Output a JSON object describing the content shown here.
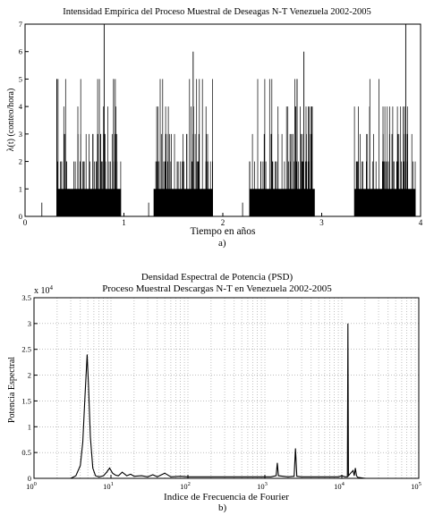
{
  "figure_labels": {
    "a": "a)",
    "b": "b)"
  },
  "chart_data": [
    {
      "type": "bar",
      "title": "Intensidad Empírica del Proceso Muestral de Deseagas N-T Venezuela 2002-2005",
      "xlabel": "Tiempo en años",
      "ylabel": "λ(t) (conteo/hora)",
      "xlim": [
        0,
        4
      ],
      "ylim": [
        0,
        7
      ],
      "xticks": [
        "0",
        "1",
        "2",
        "3",
        "4"
      ],
      "yticks": [
        "0",
        "1",
        "2",
        "3",
        "4",
        "5",
        "6",
        "7"
      ],
      "grid": false,
      "bursts": [
        {
          "start": 0.32,
          "end": 0.97,
          "peak_x": 0.8,
          "peak_y": 7
        },
        {
          "start": 1.3,
          "end": 1.9,
          "peak_x": 1.7,
          "peak_y": 6
        },
        {
          "start": 2.27,
          "end": 2.93,
          "peak_x": 2.82,
          "peak_y": 6
        },
        {
          "start": 3.33,
          "end": 3.95,
          "peak_x": 3.85,
          "peak_y": 7
        }
      ],
      "isolated_events": [
        {
          "x": 0.17,
          "y": 0.5
        },
        {
          "x": 1.25,
          "y": 0.5
        },
        {
          "x": 2.2,
          "y": 0.5
        }
      ]
    },
    {
      "type": "line",
      "title": "Densidad Espectral de Potencia (PSD)",
      "subtitle": "Proceso Muestral Descargas N-T en Venezuela 2002-2005",
      "xlabel": "Indice de Frecuencia de Fourier",
      "ylabel": "Potencia Espectral",
      "y_multiplier": "x 10",
      "y_multiplier_exp": "4",
      "xscale": "log",
      "xlim": [
        1,
        100000
      ],
      "ylim": [
        0,
        3.5
      ],
      "xtick_bases": [
        "10",
        "10",
        "10",
        "10",
        "10",
        "10"
      ],
      "xtick_exps": [
        "0",
        "1",
        "2",
        "3",
        "4",
        "5"
      ],
      "yticks": [
        "0",
        "0.5",
        "1",
        "1.5",
        "2",
        "2.5",
        "3",
        "3.5"
      ],
      "grid": true,
      "series": [
        {
          "x": [
            3,
            3.5,
            4,
            4.3,
            4.6,
            4.9,
            5.1,
            5.4,
            5.8,
            6.3,
            7,
            8,
            8.8,
            9.6,
            10.5,
            11.5,
            12.5,
            14,
            16,
            18,
            20,
            25,
            30,
            35,
            40,
            50,
            60,
            80,
            100,
            150,
            200,
            300,
            500,
            800,
            1000,
            1200,
            1400,
            1450,
            1500,
            2000,
            2400,
            2500,
            2600,
            3000,
            4000,
            5000,
            6000,
            7000,
            8000,
            9000,
            10000,
            11000,
            11800,
            12000,
            12200,
            13000,
            14000,
            14500,
            15000,
            15500,
            16000,
            20000
          ],
          "y": [
            0.0,
            0.05,
            0.25,
            0.7,
            1.6,
            2.4,
            1.8,
            0.8,
            0.2,
            0.05,
            0.03,
            0.05,
            0.12,
            0.2,
            0.1,
            0.06,
            0.05,
            0.12,
            0.05,
            0.08,
            0.04,
            0.05,
            0.03,
            0.07,
            0.03,
            0.1,
            0.03,
            0.04,
            0.03,
            0.03,
            0.03,
            0.03,
            0.03,
            0.03,
            0.03,
            0.03,
            0.05,
            0.3,
            0.05,
            0.03,
            0.04,
            0.58,
            0.04,
            0.03,
            0.03,
            0.03,
            0.03,
            0.03,
            0.03,
            0.03,
            0.05,
            0.03,
            0.03,
            3.0,
            0.05,
            0.1,
            0.15,
            0.05,
            0.2,
            0.05,
            0.02,
            0.0
          ]
        }
      ]
    }
  ]
}
